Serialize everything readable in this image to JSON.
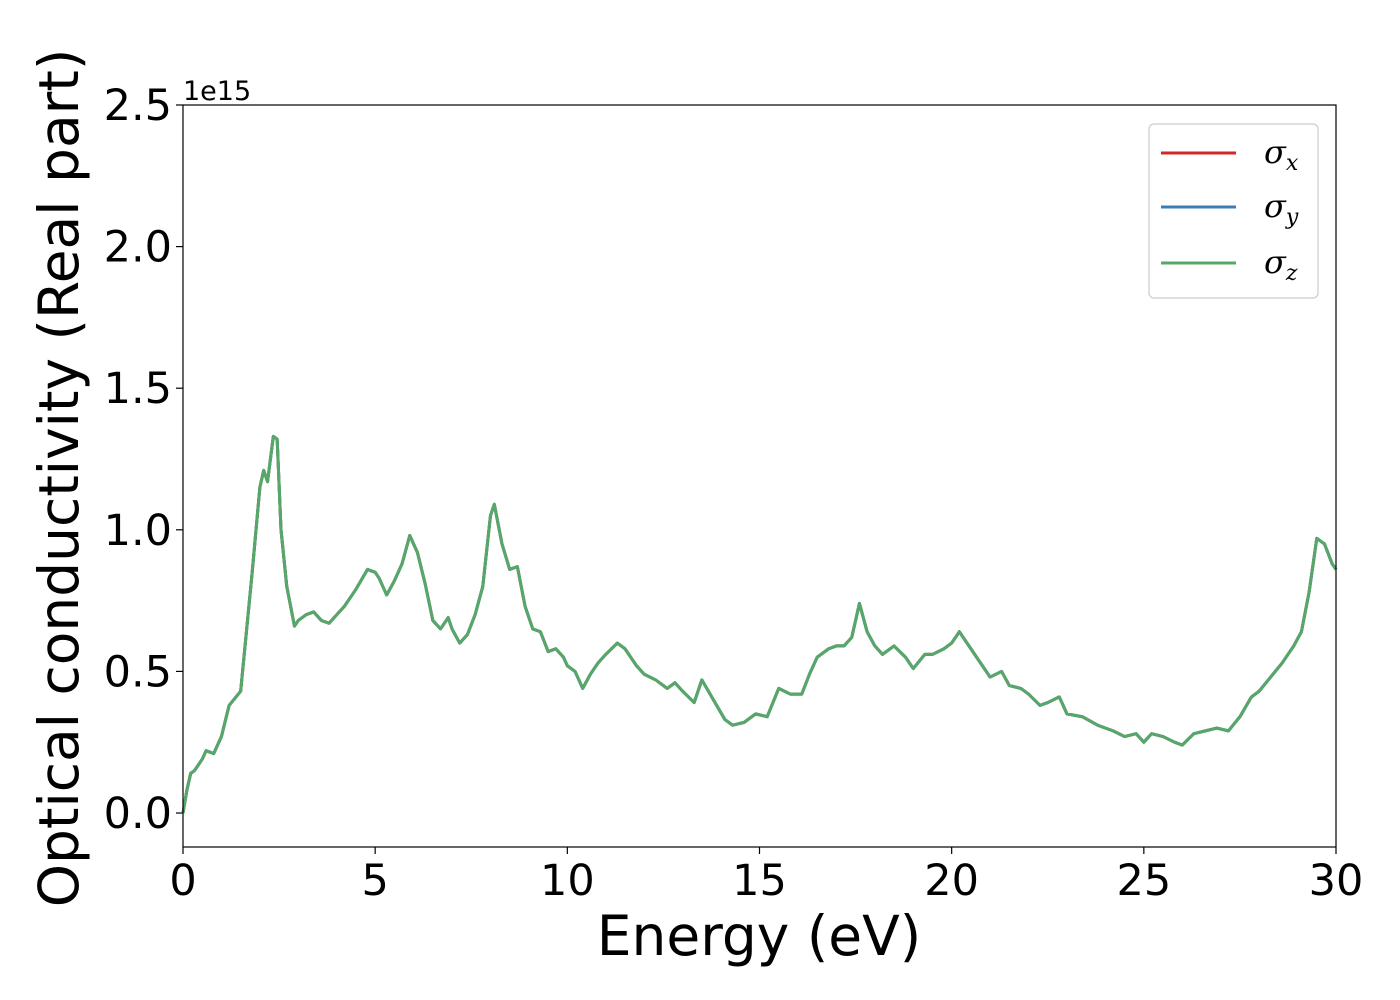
{
  "chart_data": {
    "type": "line",
    "xlabel": "Energy (eV)",
    "ylabel": "Optical conductivity (Real part)",
    "y_offset_text": "1e15",
    "xlim": [
      0,
      30
    ],
    "ylim": [
      -0.12,
      2.5
    ],
    "xticks": [
      0,
      5,
      10,
      15,
      20,
      25,
      30
    ],
    "xtick_labels": [
      "0",
      "5",
      "10",
      "15",
      "20",
      "25",
      "30"
    ],
    "yticks": [
      0.0,
      0.5,
      1.0,
      1.5,
      2.0,
      2.5
    ],
    "ytick_labels": [
      "0.0",
      "0.5",
      "1.0",
      "1.5",
      "2.0",
      "2.5"
    ],
    "grid": false,
    "legend_placement": "top-right",
    "series_colors": {
      "sigma_x": "#d62728",
      "sigma_y": "#3c7db8",
      "sigma_z": "#55a868"
    },
    "legend": [
      {
        "key": "sigma_x",
        "symbol": "σ",
        "sub": "x",
        "color": "#d62728"
      },
      {
        "key": "sigma_y",
        "symbol": "σ",
        "sub": "y",
        "color": "#3c7db8"
      },
      {
        "key": "sigma_z",
        "symbol": "σ",
        "sub": "z",
        "color": "#55a868"
      }
    ],
    "x": [
      0,
      0.1,
      0.2,
      0.3,
      0.5,
      0.6,
      0.8,
      1.0,
      1.2,
      1.5,
      1.8,
      2.0,
      2.1,
      2.2,
      2.35,
      2.45,
      2.55,
      2.7,
      2.9,
      3.0,
      3.2,
      3.4,
      3.6,
      3.8,
      4.0,
      4.2,
      4.5,
      4.8,
      5.0,
      5.1,
      5.3,
      5.5,
      5.7,
      5.9,
      6.1,
      6.3,
      6.5,
      6.7,
      6.9,
      7.0,
      7.2,
      7.4,
      7.6,
      7.8,
      8.0,
      8.1,
      8.3,
      8.5,
      8.7,
      8.9,
      9.1,
      9.3,
      9.5,
      9.7,
      9.9,
      10.0,
      10.2,
      10.4,
      10.6,
      10.8,
      11.0,
      11.3,
      11.5,
      11.8,
      12.0,
      12.3,
      12.6,
      12.8,
      13.0,
      13.3,
      13.5,
      13.8,
      14.1,
      14.3,
      14.6,
      14.9,
      15.2,
      15.5,
      15.8,
      16.1,
      16.3,
      16.5,
      16.8,
      17.0,
      17.2,
      17.4,
      17.6,
      17.8,
      18.0,
      18.2,
      18.5,
      18.8,
      19.0,
      19.3,
      19.5,
      19.8,
      20.0,
      20.2,
      20.5,
      20.8,
      21.0,
      21.3,
      21.5,
      21.8,
      22.0,
      22.3,
      22.5,
      22.8,
      23.0,
      23.4,
      23.8,
      24.2,
      24.5,
      24.8,
      25.0,
      25.2,
      25.5,
      25.8,
      26.0,
      26.3,
      26.6,
      26.9,
      27.2,
      27.5,
      27.8,
      28.0,
      28.3,
      28.6,
      28.9,
      29.1,
      29.3,
      29.5,
      29.7,
      29.9,
      30.0
    ],
    "y": [
      0.0,
      0.08,
      0.14,
      0.15,
      0.19,
      0.22,
      0.21,
      0.27,
      0.38,
      0.43,
      0.85,
      1.15,
      1.21,
      1.17,
      1.33,
      1.32,
      1.0,
      0.8,
      0.66,
      0.68,
      0.7,
      0.71,
      0.68,
      0.67,
      0.7,
      0.73,
      0.79,
      0.86,
      0.85,
      0.83,
      0.77,
      0.82,
      0.88,
      0.98,
      0.92,
      0.81,
      0.68,
      0.65,
      0.69,
      0.65,
      0.6,
      0.63,
      0.7,
      0.8,
      1.05,
      1.09,
      0.95,
      0.86,
      0.87,
      0.73,
      0.65,
      0.64,
      0.57,
      0.58,
      0.55,
      0.52,
      0.5,
      0.44,
      0.49,
      0.53,
      0.56,
      0.6,
      0.58,
      0.52,
      0.49,
      0.47,
      0.44,
      0.46,
      0.43,
      0.39,
      0.47,
      0.4,
      0.33,
      0.31,
      0.32,
      0.35,
      0.34,
      0.44,
      0.42,
      0.42,
      0.49,
      0.55,
      0.58,
      0.59,
      0.59,
      0.62,
      0.74,
      0.64,
      0.59,
      0.56,
      0.59,
      0.55,
      0.51,
      0.56,
      0.56,
      0.58,
      0.6,
      0.64,
      0.58,
      0.52,
      0.48,
      0.5,
      0.45,
      0.44,
      0.42,
      0.38,
      0.39,
      0.41,
      0.35,
      0.34,
      0.31,
      0.29,
      0.27,
      0.28,
      0.25,
      0.28,
      0.27,
      0.25,
      0.24,
      0.28,
      0.29,
      0.3,
      0.29,
      0.34,
      0.41,
      0.43,
      0.48,
      0.53,
      0.59,
      0.64,
      0.78,
      0.97,
      0.95,
      0.88,
      0.86
    ],
    "series": [
      {
        "name": "σx",
        "key": "sigma_x",
        "same_as": "y"
      },
      {
        "name": "σy",
        "key": "sigma_y",
        "same_as": "y"
      },
      {
        "name": "σz",
        "key": "sigma_z",
        "same_as": "y"
      }
    ]
  }
}
